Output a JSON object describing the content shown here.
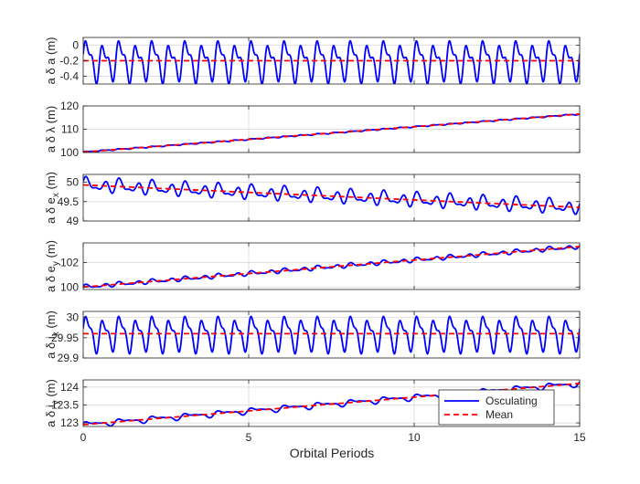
{
  "chart_data": {
    "type": "line",
    "xlabel": "Orbital Periods",
    "xlim": [
      0,
      15
    ],
    "xticks": [
      0,
      5,
      10,
      15
    ],
    "xtick_labels": [
      "0",
      "5",
      "10",
      "15"
    ],
    "grid": true,
    "colors": {
      "osculating": "#0000ff",
      "mean": "#ff0000",
      "grid": "#dfdfdf",
      "axes": "#262626"
    },
    "legend": {
      "placement": "bottom-right (last panel)",
      "entries": [
        "Osculating",
        "Mean"
      ]
    },
    "panels": [
      {
        "id": "a-delta-a",
        "ylabel": {
          "main": "a δ a (m)",
          "sub": ""
        },
        "ylim": [
          -0.5,
          0.1
        ],
        "yticks": [
          0,
          -0.2,
          -0.4
        ],
        "ytick_labels": [
          "0",
          "-0.2",
          "-0.4"
        ],
        "series": [
          {
            "name": "Osculating",
            "style": "solid",
            "mean_start": -0.2,
            "mean_end": -0.2,
            "amp1": 0.2,
            "freq1": 2.0,
            "amp2": 0.1,
            "freq2": 4.0,
            "amp3": 0.03,
            "freq3": 1.0
          },
          {
            "name": "Mean",
            "style": "dashed",
            "start": -0.2,
            "end": -0.2
          }
        ]
      },
      {
        "id": "a-delta-lambda",
        "ylabel": {
          "main": "a δ λ (m)",
          "sub": ""
        },
        "ylim": [
          100,
          120
        ],
        "yticks": [
          100,
          110,
          120
        ],
        "ytick_labels": [
          "100",
          "110",
          "120"
        ],
        "series": [
          {
            "name": "Osculating",
            "style": "solid",
            "mean_start": 100.2,
            "mean_end": 116.5,
            "amp1": 0.2,
            "freq1": 2.0,
            "amp2": 0.1,
            "freq2": 4.0,
            "amp3": 0.0,
            "freq3": 1.0
          },
          {
            "name": "Mean",
            "style": "dashed",
            "start": 100.2,
            "end": 116.5
          }
        ]
      },
      {
        "id": "a-delta-ex",
        "ylabel": {
          "main": "a δ e",
          "sub": "x",
          "unit": " (m)"
        },
        "ylim": [
          49,
          50.2
        ],
        "yticks": [
          49,
          49.5,
          50
        ],
        "ytick_labels": [
          "49",
          "49.5",
          "50"
        ],
        "series": [
          {
            "name": "Osculating",
            "style": "solid",
            "mean_start": 49.93,
            "mean_end": 49.35,
            "amp1": 0.12,
            "freq1": 2.0,
            "amp2": 0.08,
            "freq2": 3.0,
            "amp3": 0.05,
            "freq3": 1.0
          },
          {
            "name": "Mean",
            "style": "dashed",
            "start": 49.93,
            "end": 49.35
          }
        ]
      },
      {
        "id": "a-delta-ey",
        "ylabel": {
          "main": "a δ e",
          "sub": "y",
          "unit": " (m)"
        },
        "ylim": [
          99.8,
          103.6
        ],
        "yticks": [
          100,
          102
        ],
        "ytick_labels": [
          "100",
          "102"
        ],
        "series": [
          {
            "name": "Osculating",
            "style": "solid",
            "mean_start": 100.0,
            "mean_end": 103.3,
            "amp1": 0.12,
            "freq1": 2.0,
            "amp2": 0.08,
            "freq2": 3.0,
            "amp3": 0.04,
            "freq3": 1.0
          },
          {
            "name": "Mean",
            "style": "dashed",
            "start": 100.0,
            "end": 103.3
          }
        ]
      },
      {
        "id": "a-delta-ix",
        "ylabel": {
          "main": "a δ i",
          "sub": "x",
          "unit": " (m)"
        },
        "ylim": [
          29.9,
          30.015
        ],
        "yticks": [
          29.9,
          29.95,
          30
        ],
        "ytick_labels": [
          "29.9",
          "29.95",
          "30"
        ],
        "series": [
          {
            "name": "Osculating",
            "style": "solid",
            "mean_start": 29.96,
            "mean_end": 29.96,
            "amp1": 0.035,
            "freq1": 2.0,
            "amp2": 0.015,
            "freq2": 4.0,
            "amp3": 0.005,
            "freq3": 1.0
          },
          {
            "name": "Mean",
            "style": "dashed",
            "start": 29.96,
            "end": 29.96
          }
        ]
      },
      {
        "id": "a-delta-iy",
        "ylabel": {
          "main": "a δ i",
          "sub": "y",
          "unit": " (m)"
        },
        "ylim": [
          122.9,
          124.2
        ],
        "yticks": [
          123,
          123.5,
          124
        ],
        "ytick_labels": [
          "123",
          "123.5",
          "124"
        ],
        "series": [
          {
            "name": "Osculating",
            "style": "solid",
            "mean_start": 122.95,
            "mean_end": 124.1,
            "amp1": 0.05,
            "freq1": 1.0,
            "amp2": 0.04,
            "freq2": 2.0,
            "amp3": 0.02,
            "freq3": 3.0
          },
          {
            "name": "Mean",
            "style": "dashed",
            "start": 122.95,
            "end": 124.1
          }
        ]
      }
    ]
  }
}
